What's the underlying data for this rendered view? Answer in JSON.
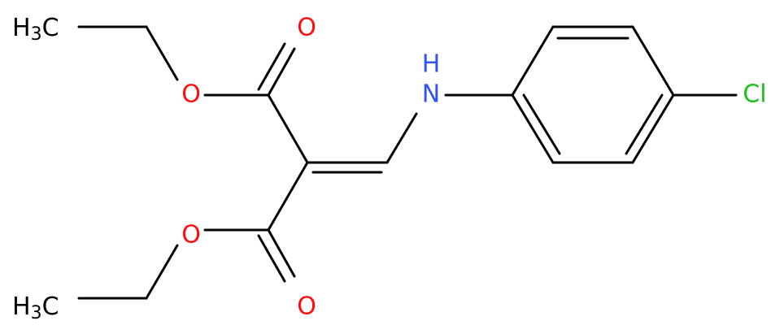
{
  "molecule": {
    "top_methyl": {
      "main": "H",
      "sub": "3",
      "end": "C"
    },
    "bottom_methyl": {
      "main": "H",
      "sub": "3",
      "end": "C"
    },
    "atoms": [
      "O",
      "O",
      "O",
      "O",
      "N",
      "H",
      "Cl"
    ]
  }
}
